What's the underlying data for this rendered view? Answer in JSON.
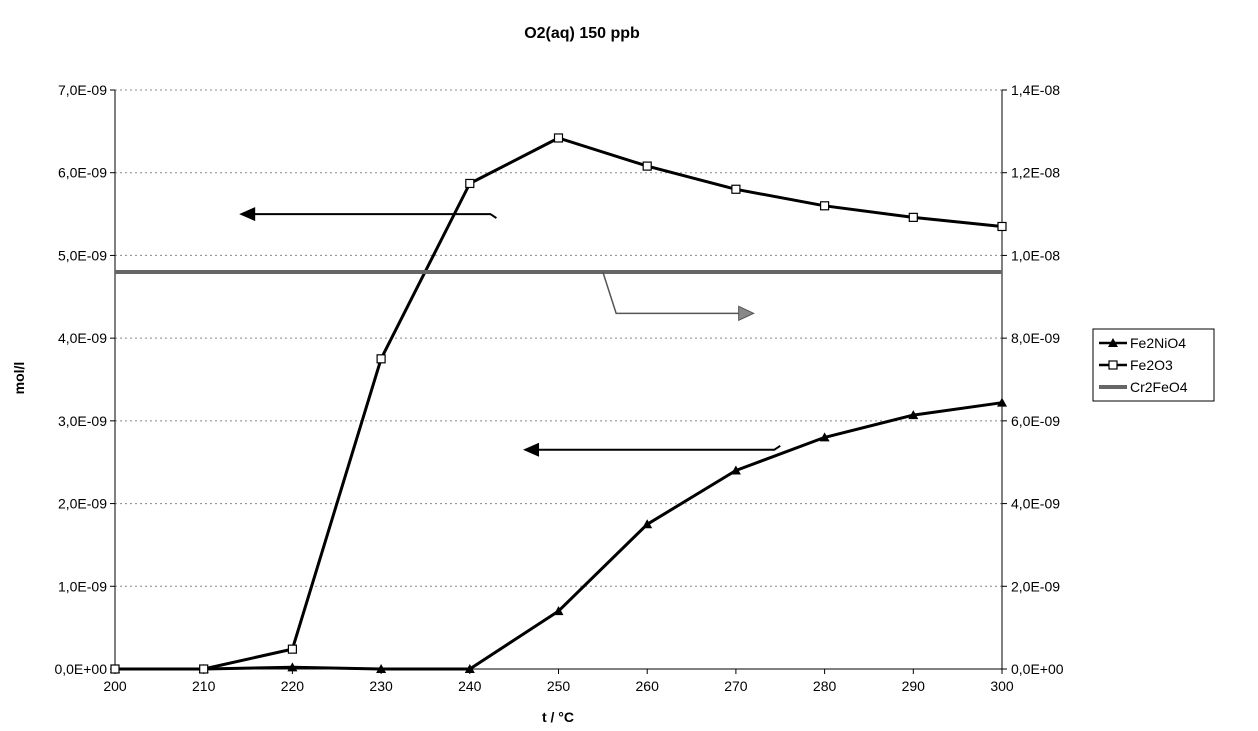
{
  "chart_data": {
    "type": "line",
    "title": "O2(aq) 150 ppb",
    "xlabel": "t / °C",
    "ylabel": "mol/l",
    "x": [
      200,
      210,
      220,
      230,
      240,
      250,
      260,
      270,
      280,
      290,
      300
    ],
    "x_ticks": [
      "200",
      "210",
      "220",
      "230",
      "240",
      "250",
      "260",
      "270",
      "280",
      "290",
      "300"
    ],
    "xlim": [
      200,
      300
    ],
    "ylim_left": [
      0,
      7e-09
    ],
    "ylim_right": [
      0,
      1.4e-08
    ],
    "y_ticks_left": [
      "0,0E+00",
      "1,0E-09",
      "2,0E-09",
      "3,0E-09",
      "4,0E-09",
      "5,0E-09",
      "6,0E-09",
      "7,0E-09"
    ],
    "y_ticks_right": [
      "0,0E+00",
      "2,0E-09",
      "4,0E-09",
      "6,0E-09",
      "8,0E-09",
      "1,0E-08",
      "1,2E-08",
      "1,4E-08"
    ],
    "grid": "horizontal dotted",
    "legend_position": "right",
    "series": [
      {
        "name": "Fe2NiO4",
        "axis": "left",
        "marker": "triangle",
        "color": "#000000",
        "values": [
          0,
          0,
          2e-11,
          0,
          0,
          7e-10,
          1.75e-09,
          2.4e-09,
          2.8e-09,
          3.07e-09,
          3.22e-09
        ]
      },
      {
        "name": "Fe2O3",
        "axis": "left",
        "marker": "square",
        "color": "#000000",
        "values": [
          0,
          0,
          2.4e-10,
          3.75e-09,
          5.87e-09,
          6.42e-09,
          6.08e-09,
          5.8e-09,
          5.6e-09,
          5.46e-09,
          5.35e-09
        ]
      },
      {
        "name": "Cr2FeO4",
        "axis": "right",
        "marker": "none",
        "color": "#666666",
        "values": [
          9.6e-09,
          9.6e-09,
          9.6e-09,
          9.6e-09,
          9.6e-09,
          9.6e-09,
          9.6e-09,
          9.6e-09,
          9.6e-09,
          9.6e-09,
          9.6e-09
        ]
      }
    ],
    "annotations": [
      {
        "type": "arrow",
        "series": "Fe2O3",
        "points_to": "left",
        "from": [
          243,
          5.5e-09
        ],
        "to": [
          214,
          5.5e-09
        ]
      },
      {
        "type": "arrow",
        "series": "Fe2NiO4",
        "points_to": "left",
        "from": [
          275,
          2.65e-09
        ],
        "to": [
          246,
          2.65e-09
        ]
      },
      {
        "type": "arrow",
        "series": "Cr2FeO4",
        "points_to": "right",
        "from": [
          255,
          4.8e-09
        ],
        "to": [
          272,
          4.3e-09
        ]
      }
    ]
  }
}
